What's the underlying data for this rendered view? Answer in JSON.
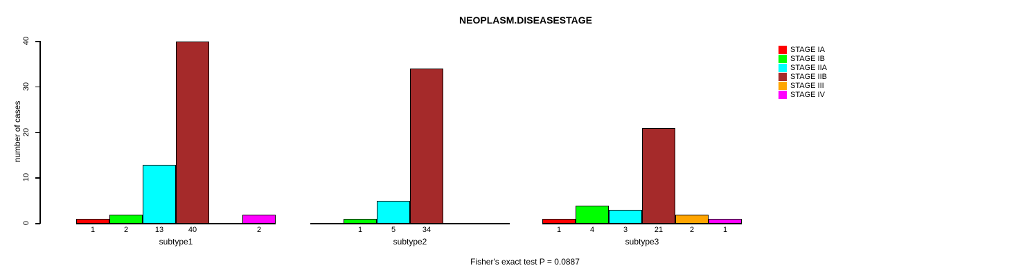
{
  "chart_data": {
    "type": "bar",
    "title": "NEOPLASM.DISEASESTAGE",
    "ylabel": "number of cases",
    "xlabel": "",
    "ylim": [
      0,
      40
    ],
    "yticks": [
      0,
      10,
      20,
      30,
      40
    ],
    "grid": false,
    "legend_position": "right",
    "categories": [
      "subtype1",
      "subtype2",
      "subtype3"
    ],
    "stages": [
      "STAGE IA",
      "STAGE IB",
      "STAGE IIA",
      "STAGE IIB",
      "STAGE III",
      "STAGE IV"
    ],
    "colors": [
      "#FF0000",
      "#00FF00",
      "#00FFFF",
      "#A52A2A",
      "#FFA500",
      "#FF00FF"
    ],
    "series": [
      {
        "name": "STAGE IA",
        "color": "#FF0000",
        "values": [
          1,
          0,
          1
        ]
      },
      {
        "name": "STAGE IB",
        "color": "#00FF00",
        "values": [
          2,
          1,
          4
        ]
      },
      {
        "name": "STAGE IIA",
        "color": "#00FFFF",
        "values": [
          13,
          5,
          3
        ]
      },
      {
        "name": "STAGE IIB",
        "color": "#A52A2A",
        "values": [
          40,
          34,
          21
        ]
      },
      {
        "name": "STAGE III",
        "color": "#FFA500",
        "values": [
          0,
          0,
          2
        ]
      },
      {
        "name": "STAGE IV",
        "color": "#FF00FF",
        "values": [
          2,
          0,
          1
        ]
      }
    ],
    "groups": [
      {
        "label": "subtype1",
        "values": [
          1,
          2,
          13,
          40,
          0,
          2
        ]
      },
      {
        "label": "subtype2",
        "values": [
          0,
          1,
          5,
          34,
          0,
          0
        ]
      },
      {
        "label": "subtype3",
        "values": [
          1,
          4,
          3,
          21,
          2,
          1
        ]
      }
    ],
    "bar_value_labels_shown_for_zero": false,
    "annotation": "Fisher's exact test P = 0.0887"
  }
}
